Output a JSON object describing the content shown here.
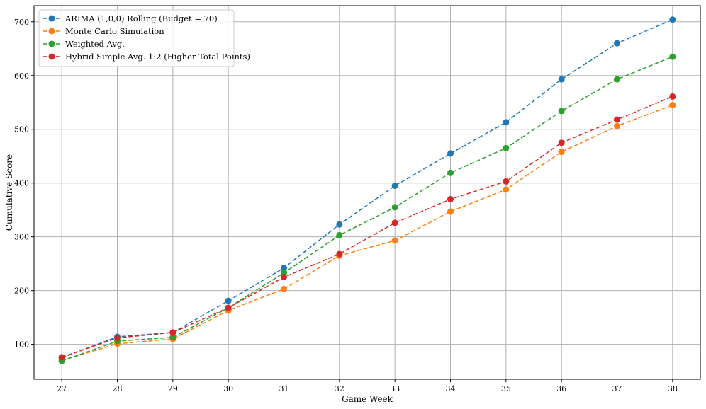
{
  "chart_data": {
    "type": "line",
    "title": "",
    "xlabel": "Game Week",
    "ylabel": "Cumulative Score",
    "x": [
      27,
      28,
      29,
      30,
      31,
      32,
      33,
      34,
      35,
      36,
      37,
      38
    ],
    "xlim": [
      26.5,
      38.5
    ],
    "ylim": [
      35,
      730
    ],
    "yticks": [
      100,
      200,
      300,
      400,
      500,
      600,
      700
    ],
    "grid": true,
    "legend_position": "top-left",
    "line_style": "dashed",
    "marker": "circle",
    "series": [
      {
        "name": "ARIMA (1,0,0) Rolling (Budget = 70)",
        "color": "#1f77b4",
        "values": [
          75,
          114,
          122,
          181,
          242,
          323,
          395,
          455,
          513,
          593,
          660,
          704
        ]
      },
      {
        "name": "Monte Carlo Simulation",
        "color": "#ff7f0e",
        "values": [
          70,
          101,
          110,
          163,
          203,
          265,
          293,
          347,
          388,
          458,
          506,
          545
        ]
      },
      {
        "name": "Weighted Avg.",
        "color": "#2ca02c",
        "values": [
          69,
          106,
          113,
          168,
          233,
          303,
          355,
          419,
          465,
          534,
          593,
          635
        ]
      },
      {
        "name": "Hybrid Simple Avg. 1:2 (Higher Total Points)",
        "color": "#d62728",
        "values": [
          76,
          112,
          122,
          168,
          225,
          268,
          326,
          370,
          403,
          475,
          518,
          561
        ]
      }
    ]
  }
}
